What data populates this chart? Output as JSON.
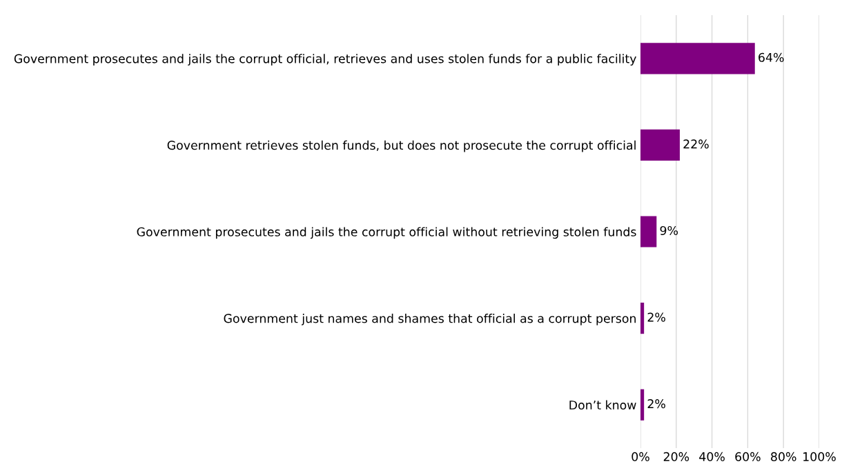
{
  "chart_data": {
    "type": "bar",
    "orientation": "horizontal",
    "categories": [
      "Government prosecutes and jails the corrupt official, retrieves and uses stolen funds for a public facility",
      "Government retrieves stolen funds, but does not prosecute the corrupt official",
      "Government prosecutes and jails the corrupt official without retrieving stolen funds",
      "Government just names and shames that official as a corrupt person",
      "Don’t know"
    ],
    "values": [
      64,
      22,
      9,
      2,
      2
    ],
    "color": "#800080",
    "value_labels": [
      "64%",
      "22%",
      "9%",
      "2%",
      "2%"
    ],
    "xlim": [
      0,
      100
    ],
    "xticks": [
      {
        "value": 0,
        "label": "0%"
      },
      {
        "value": 20,
        "label": "20%"
      },
      {
        "value": 40,
        "label": "40%"
      },
      {
        "value": 60,
        "label": "60%"
      },
      {
        "value": 80,
        "label": "80%"
      },
      {
        "value": 100,
        "label": "100%"
      }
    ],
    "grid": "x"
  }
}
